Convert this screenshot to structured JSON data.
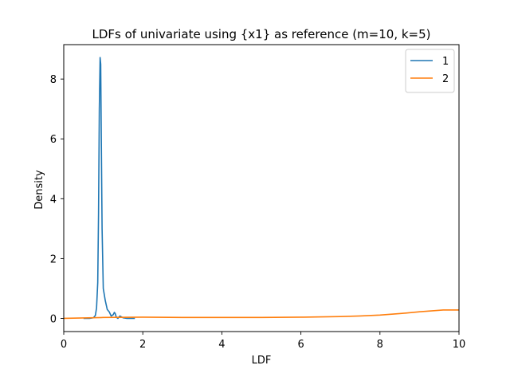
{
  "chart_data": {
    "type": "line",
    "title": "LDFs of univariate using {x1} as reference (m=10, k=5)",
    "xlabel": "LDF",
    "ylabel": "Density",
    "xlim": [
      0,
      10
    ],
    "ylim": [
      -0.44,
      9.15
    ],
    "xticks": [
      "0",
      "2",
      "4",
      "6",
      "8",
      "10"
    ],
    "yticks": [
      "0",
      "2",
      "4",
      "6",
      "8"
    ],
    "grid": false,
    "legend_position": "top-right",
    "series": [
      {
        "name": "1",
        "color": "#1f77b4",
        "x": [
          0.5,
          0.65,
          0.75,
          0.8,
          0.83,
          0.86,
          0.88,
          0.9,
          0.92,
          0.935,
          0.95,
          0.97,
          1.0,
          1.05,
          1.1,
          1.15,
          1.2,
          1.25,
          1.28,
          1.3,
          1.33,
          1.37,
          1.42,
          1.5,
          1.6,
          1.7,
          1.8
        ],
        "y": [
          0.0,
          0.0,
          0.02,
          0.1,
          0.35,
          1.2,
          3.5,
          7.0,
          8.72,
          8.5,
          6.0,
          3.0,
          1.0,
          0.6,
          0.3,
          0.22,
          0.08,
          0.12,
          0.2,
          0.17,
          0.04,
          0.0,
          0.08,
          0.02,
          0.0,
          0.0,
          0.0
        ]
      },
      {
        "name": "2",
        "color": "#ff7f0e",
        "x": [
          0,
          1,
          2,
          3,
          4,
          5,
          6,
          7,
          7.5,
          8,
          8.5,
          9,
          9.3,
          9.6,
          9.8,
          10
        ],
        "y": [
          0.0,
          0.03,
          0.04,
          0.03,
          0.03,
          0.03,
          0.04,
          0.06,
          0.08,
          0.11,
          0.16,
          0.22,
          0.25,
          0.28,
          0.28,
          0.28
        ]
      }
    ]
  }
}
